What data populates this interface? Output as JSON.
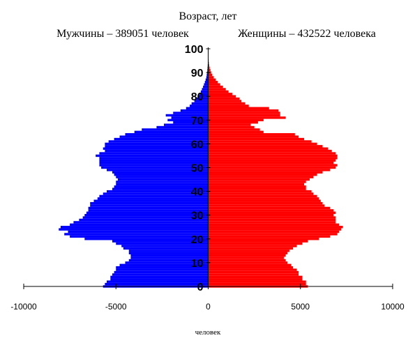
{
  "chart_data": {
    "type": "bar",
    "orientation": "horizontal",
    "title": "Возраст, лет",
    "xlabel": "человек",
    "xlim": [
      -10000,
      10000
    ],
    "x_ticks": [
      -10000,
      -5000,
      0,
      5000,
      10000
    ],
    "y_ticks": [
      0,
      10,
      20,
      30,
      40,
      50,
      60,
      70,
      80,
      90,
      100
    ],
    "ages": [
      0,
      1,
      2,
      3,
      4,
      5,
      6,
      7,
      8,
      9,
      10,
      11,
      12,
      13,
      14,
      15,
      16,
      17,
      18,
      19,
      20,
      21,
      22,
      23,
      24,
      25,
      26,
      27,
      28,
      29,
      30,
      31,
      32,
      33,
      34,
      35,
      36,
      37,
      38,
      39,
      40,
      41,
      42,
      43,
      44,
      45,
      46,
      47,
      48,
      49,
      50,
      51,
      52,
      53,
      54,
      55,
      56,
      57,
      58,
      59,
      60,
      61,
      62,
      63,
      64,
      65,
      66,
      67,
      68,
      69,
      70,
      71,
      72,
      73,
      74,
      75,
      76,
      77,
      78,
      79,
      80,
      81,
      82,
      83,
      84,
      85,
      86,
      87,
      88,
      89,
      90,
      91,
      92,
      93,
      94,
      95,
      96,
      97,
      98,
      99,
      100
    ],
    "series": [
      {
        "name": "Мужчины – 389051 человек",
        "color": "#0000FF",
        "values": [
          5700,
          5600,
          5500,
          5300,
          5300,
          5200,
          5100,
          5000,
          5000,
          4800,
          4500,
          4300,
          4200,
          4200,
          4300,
          4300,
          4600,
          4700,
          5000,
          5200,
          6700,
          7500,
          7800,
          7600,
          8100,
          8000,
          7500,
          7300,
          7000,
          6800,
          6700,
          6600,
          6500,
          6500,
          6400,
          6400,
          6200,
          6000,
          5900,
          5700,
          5500,
          5200,
          5100,
          5000,
          5000,
          4900,
          5000,
          5100,
          5200,
          5500,
          5800,
          5900,
          5900,
          5900,
          5900,
          6100,
          5900,
          5600,
          5700,
          5600,
          5600,
          5400,
          5100,
          4800,
          4500,
          4000,
          3600,
          2800,
          2400,
          1900,
          2200,
          2000,
          2300,
          1900,
          1500,
          1200,
          1000,
          900,
          750,
          650,
          550,
          470,
          400,
          340,
          280,
          230,
          180,
          140,
          100,
          80,
          60,
          45,
          35,
          25,
          18,
          12,
          8,
          5,
          3,
          2,
          1
        ]
      },
      {
        "name": "Женщины – 432522 человека",
        "color": "#FF0000",
        "values": [
          5400,
          5300,
          5300,
          5100,
          5100,
          4900,
          4900,
          4800,
          4600,
          4500,
          4300,
          4200,
          4100,
          4200,
          4300,
          4400,
          4600,
          4800,
          5100,
          5400,
          6000,
          6600,
          7000,
          7100,
          7200,
          7300,
          7100,
          6900,
          6900,
          6900,
          6800,
          6900,
          6800,
          6600,
          6300,
          6200,
          6100,
          6000,
          5900,
          5700,
          5600,
          5300,
          5300,
          5200,
          5300,
          5500,
          5700,
          5900,
          6200,
          6600,
          6900,
          7000,
          6800,
          6900,
          7000,
          7000,
          6900,
          6700,
          6500,
          6200,
          5900,
          5600,
          5200,
          4900,
          4700,
          3000,
          2800,
          2500,
          2300,
          2700,
          3000,
          4200,
          3900,
          3900,
          3800,
          3300,
          2200,
          2000,
          1800,
          1700,
          1500,
          1300,
          1100,
          950,
          800,
          650,
          520,
          400,
          300,
          220,
          160,
          120,
          80,
          55,
          38,
          25,
          16,
          10,
          6,
          3,
          1
        ]
      }
    ]
  }
}
